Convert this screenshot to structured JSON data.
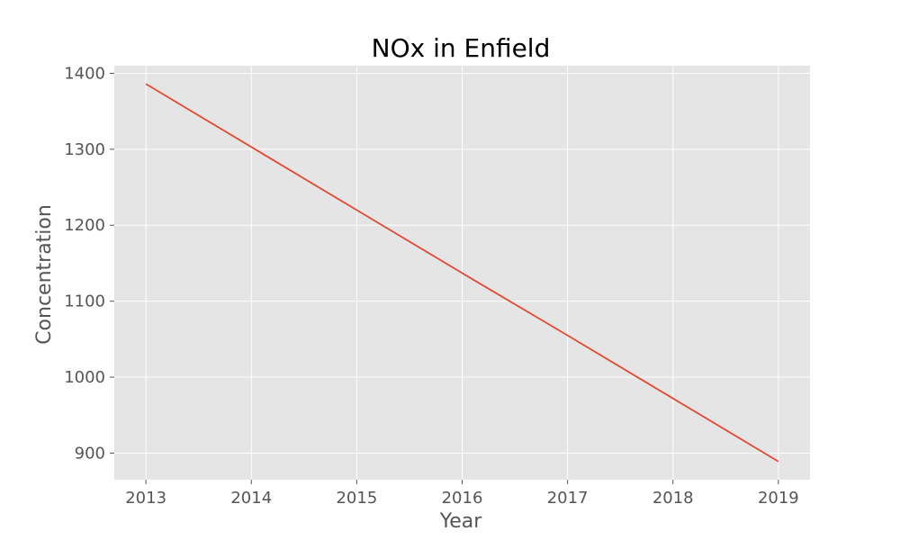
{
  "chart_data": {
    "type": "line",
    "title": "NOx in Enfield",
    "xlabel": "Year",
    "ylabel": "Concentration",
    "x": [
      2013,
      2014,
      2015,
      2016,
      2017,
      2018,
      2019
    ],
    "series": [
      {
        "name": "NOx",
        "values": [
          1386,
          1303,
          1220,
          1137,
          1055,
          972,
          889
        ],
        "color": "#E24A33"
      }
    ],
    "xlim": [
      2012.7,
      2019.3
    ],
    "ylim": [
      865,
      1410
    ],
    "xticks": [
      2013,
      2014,
      2015,
      2016,
      2017,
      2018,
      2019
    ],
    "yticks": [
      900,
      1000,
      1100,
      1200,
      1300,
      1400
    ],
    "grid": true,
    "style": {
      "background": "#E5E5E5",
      "grid_color": "#FFFFFF",
      "tick_color": "#555555"
    }
  }
}
